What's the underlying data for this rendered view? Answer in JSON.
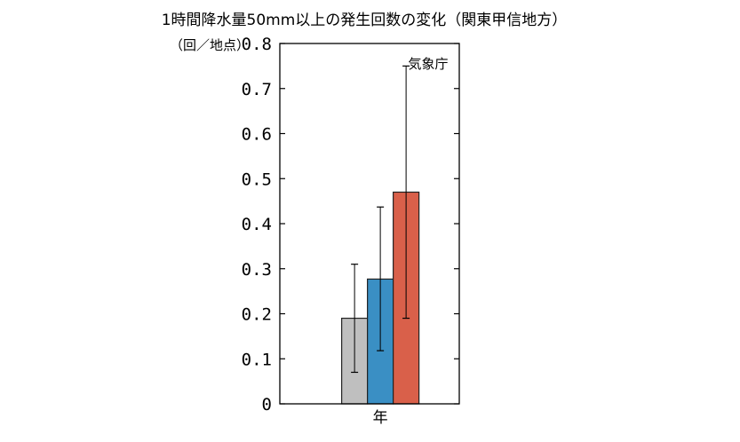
{
  "chart_data": {
    "type": "bar",
    "title": "1時間降水量50mm以上の発生回数の変化（関東甲信地方）",
    "ylabel": "（回／地点）",
    "xlabel": "",
    "categories": [
      "年"
    ],
    "ylim": [
      0,
      0.8
    ],
    "yticks": [
      "0",
      "0.1",
      "0.2",
      "0.3",
      "0.4",
      "0.5",
      "0.6",
      "0.7",
      "0.8"
    ],
    "source_label": "気象庁",
    "legend": "none",
    "grid": false,
    "series": [
      {
        "color": "#bfbfbf",
        "values": [
          0.19
        ],
        "error_low": [
          0.07
        ],
        "error_high": [
          0.31
        ]
      },
      {
        "color": "#3a8fc4",
        "values": [
          0.277
        ],
        "error_low": [
          0.118
        ],
        "error_high": [
          0.437
        ]
      },
      {
        "color": "#d9604a",
        "values": [
          0.47
        ],
        "error_low": [
          0.19
        ],
        "error_high": [
          0.75
        ]
      }
    ]
  }
}
